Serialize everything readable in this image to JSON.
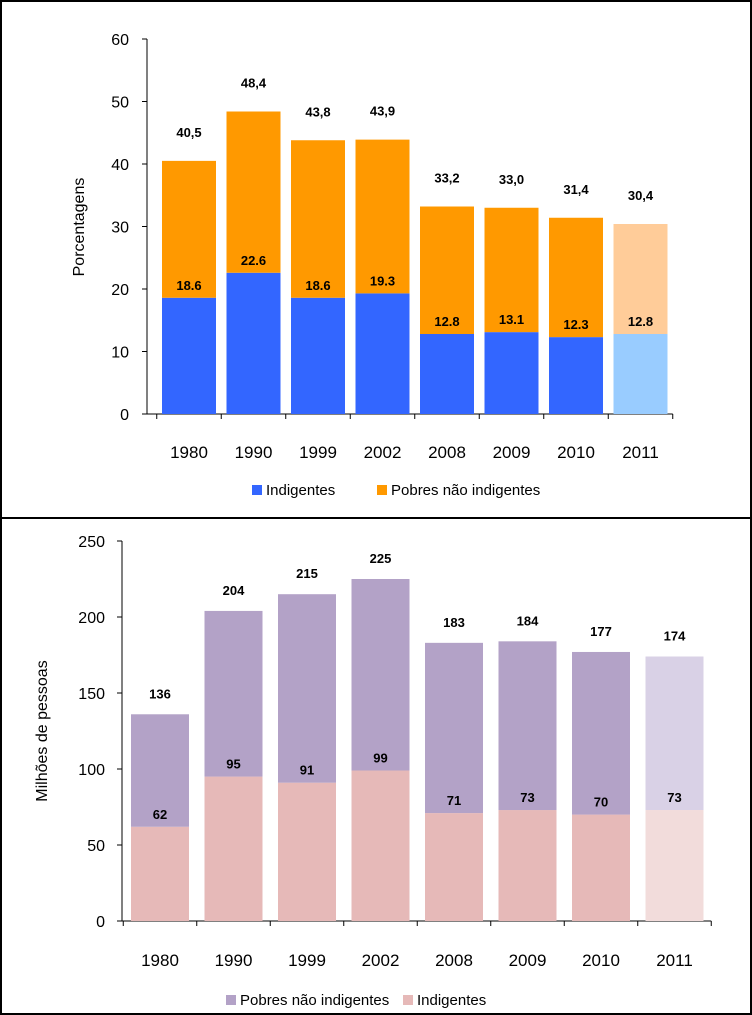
{
  "chart_data": [
    {
      "type": "bar",
      "stacked": true,
      "categories": [
        "1980",
        "1990",
        "1999",
        "2002",
        "2008",
        "2009",
        "2010",
        "2011"
      ],
      "ylabel": "Porcentagens",
      "ylim": [
        0,
        60
      ],
      "yticks": [
        "0",
        "10",
        "20",
        "30",
        "40",
        "50",
        "60"
      ],
      "series": [
        {
          "name": "Indigentes",
          "color": "#3366ff",
          "projected_color": "#99ccff",
          "values": [
            18.6,
            22.6,
            18.6,
            19.3,
            12.8,
            13.1,
            12.3,
            12.8
          ],
          "labels": [
            "18.6",
            "22.6",
            "18.6",
            "19.3",
            "12.8",
            "13.1",
            "12.3",
            "12.8"
          ]
        },
        {
          "name": "Pobres não indigentes",
          "color": "#ff9900",
          "projected_color": "#ffcc99",
          "values": [
            21.9,
            25.8,
            25.2,
            24.6,
            20.4,
            19.9,
            19.1,
            17.6
          ]
        }
      ],
      "totals": [
        40.5,
        48.4,
        43.8,
        43.9,
        33.2,
        33.0,
        31.4,
        30.4
      ],
      "total_labels": [
        "40,5",
        "48,4",
        "43,8",
        "43,9",
        "33,2",
        "33,0",
        "31,4",
        "30,4"
      ],
      "legend": [
        "Indigentes",
        "Pobres não indigentes"
      ],
      "legend_placement": "bottom",
      "grid": false
    },
    {
      "type": "bar",
      "stacked": true,
      "categories": [
        "1980",
        "1990",
        "1999",
        "2002",
        "2008",
        "2009",
        "2010",
        "2011"
      ],
      "ylabel": "Milhões de pessoas",
      "ylim": [
        0,
        250
      ],
      "yticks": [
        "0",
        "50",
        "100",
        "150",
        "200",
        "250"
      ],
      "series": [
        {
          "name": "Indigentes",
          "color": "#e6b9b8",
          "projected_color": "#f2dcdb",
          "values": [
            62,
            95,
            91,
            99,
            71,
            73,
            70,
            73
          ],
          "labels": [
            "62",
            "95",
            "91",
            "99",
            "71",
            "73",
            "70",
            "73"
          ]
        },
        {
          "name": "Pobres não indigentes",
          "color": "#b3a2c7",
          "projected_color": "#d9d1e6",
          "values": [
            74,
            109,
            124,
            126,
            112,
            111,
            107,
            101
          ]
        }
      ],
      "totals": [
        136,
        204,
        215,
        225,
        183,
        184,
        177,
        174
      ],
      "total_labels": [
        "136",
        "204",
        "215",
        "225",
        "183",
        "184",
        "177",
        "174"
      ],
      "legend": [
        "Pobres não indigentes",
        "Indigentes"
      ],
      "legend_placement": "bottom",
      "grid": false
    }
  ]
}
